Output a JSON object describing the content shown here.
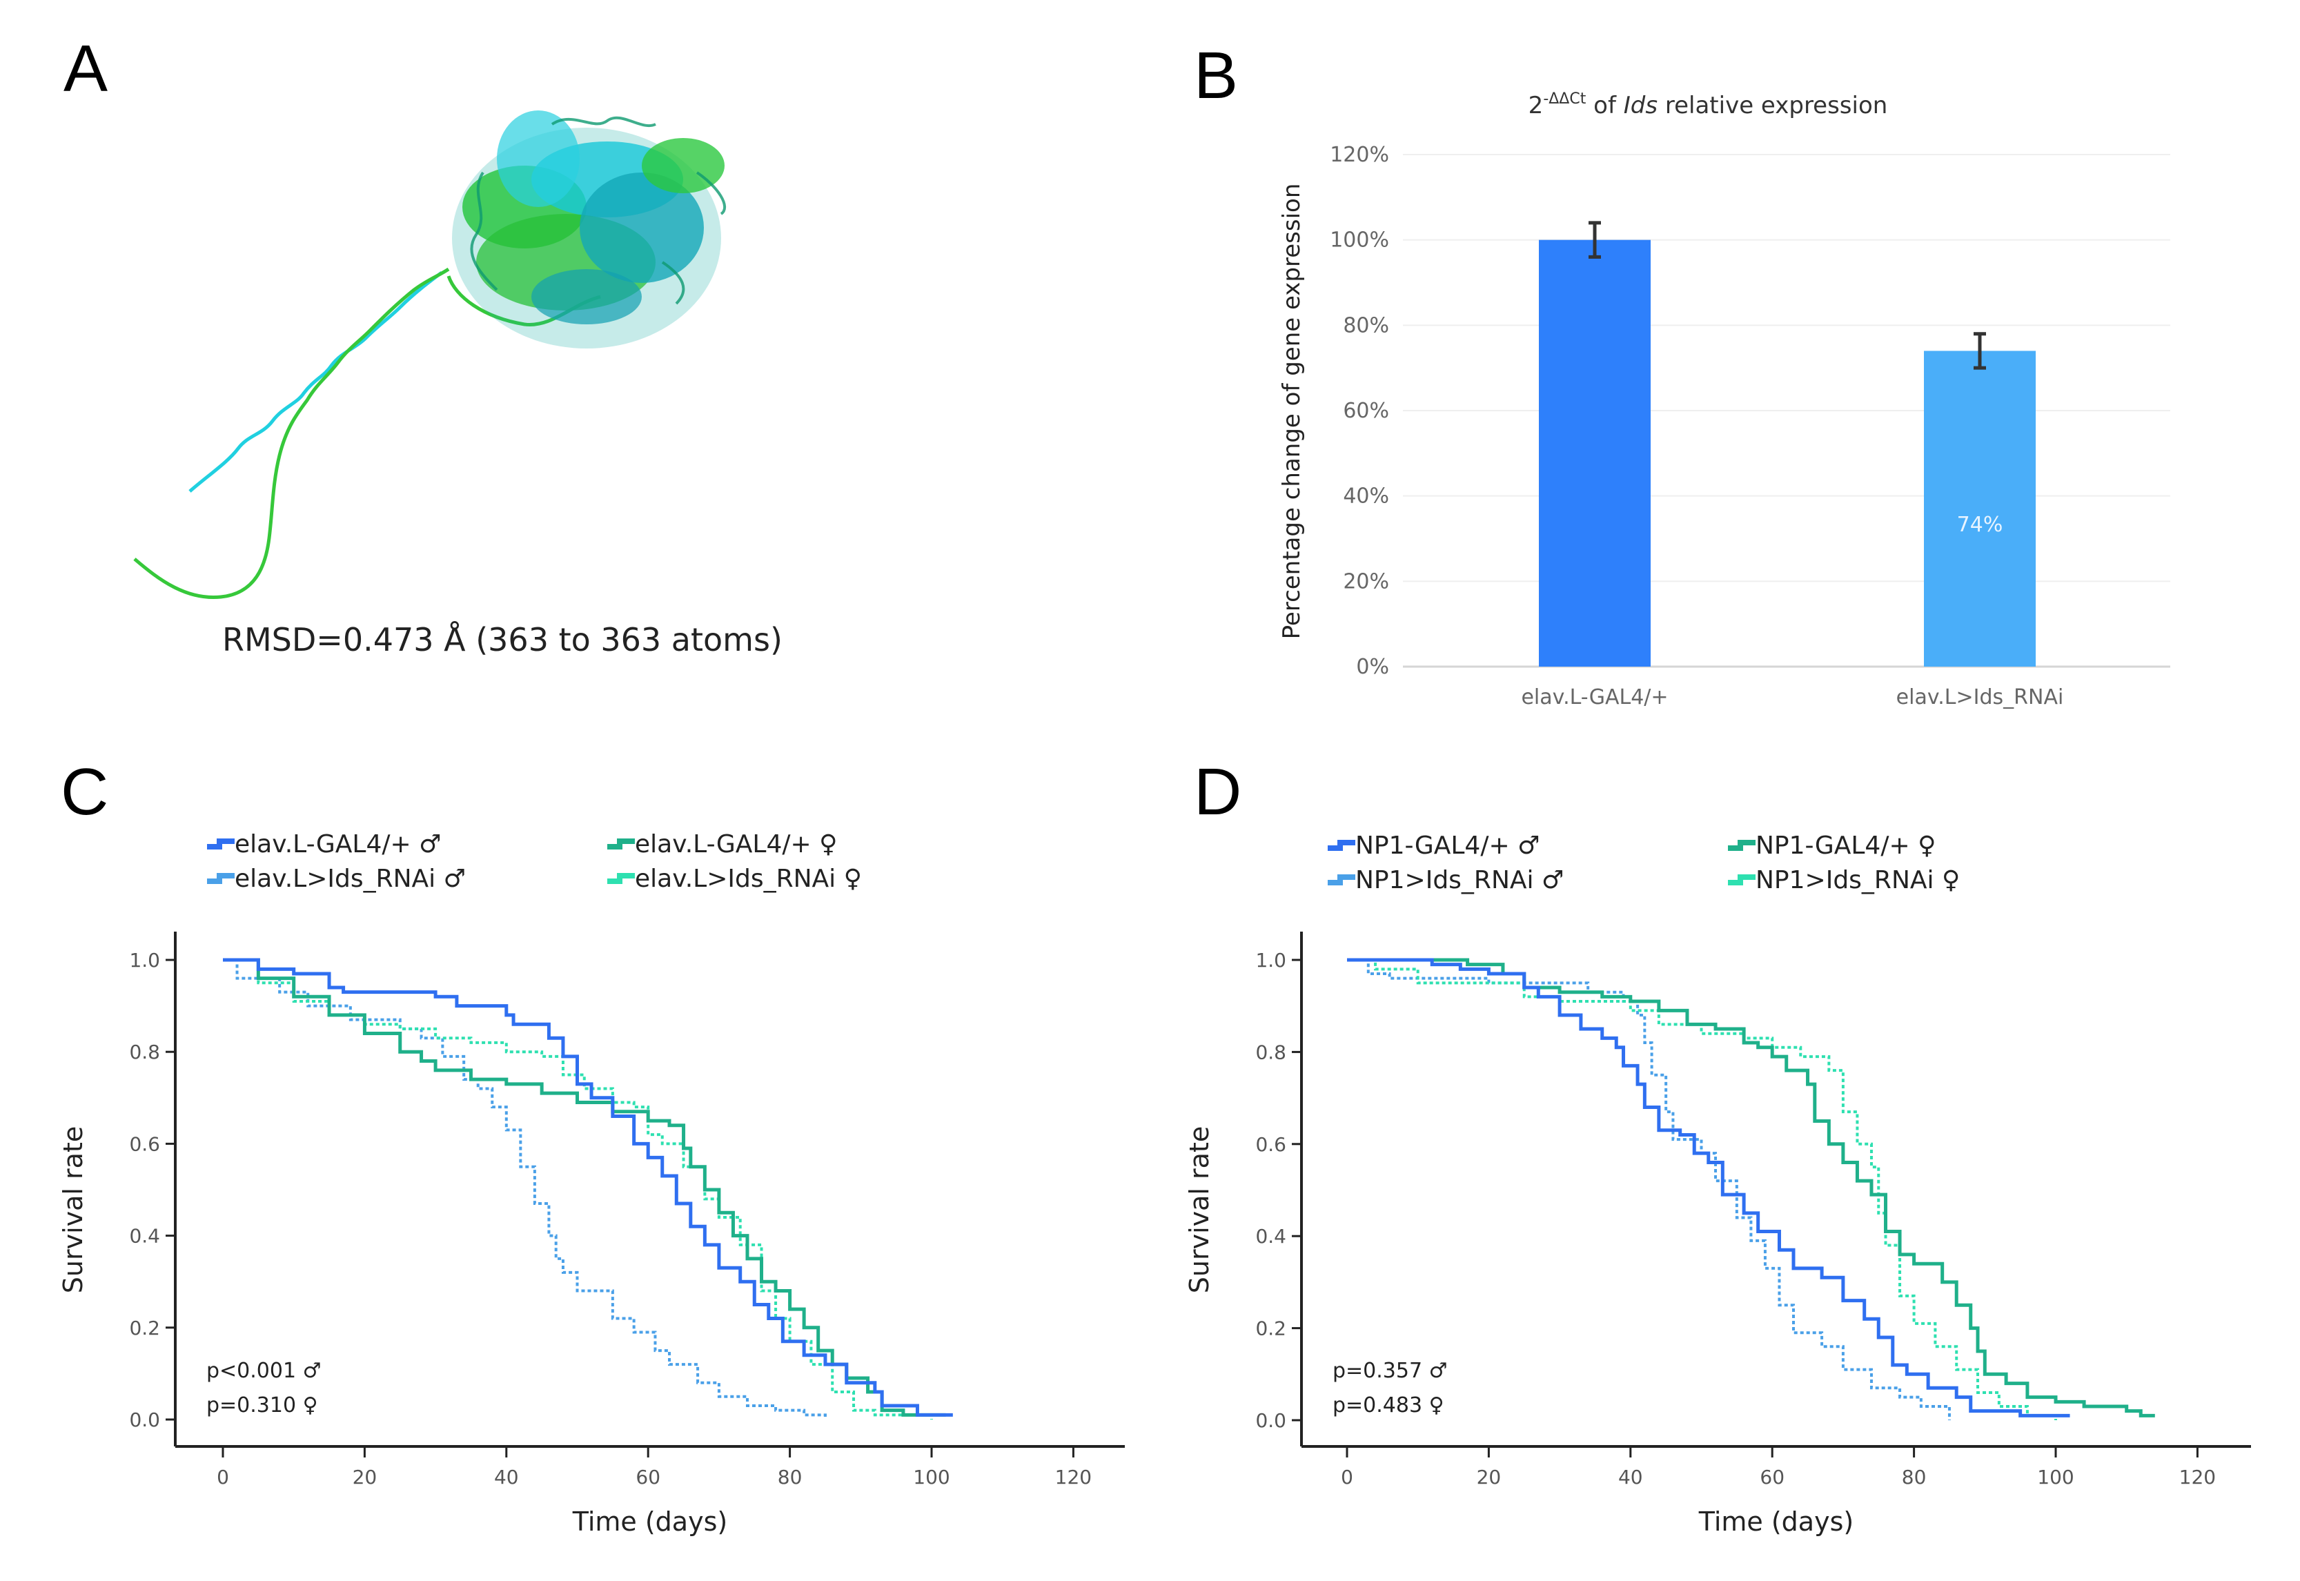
{
  "figure": {
    "panels": [
      "A",
      "B",
      "C",
      "D"
    ]
  },
  "panel_a": {
    "letter": "A",
    "caption": "RMSD=0.473 Å (363 to 363 atoms)",
    "structure_colors": [
      "#22c832",
      "#20d0e0"
    ]
  },
  "chart_data": [
    {
      "panel": "B",
      "type": "bar",
      "title_prefix": "2",
      "title_superscript": "-ΔΔCt",
      "title_middle": " of ",
      "title_italic": "Ids",
      "title_suffix": " relative expression",
      "ylabel": "Percentage change of gene expression",
      "xlabel": "",
      "ylim": [
        0,
        120
      ],
      "yticks": [
        "0%",
        "20%",
        "40%",
        "60%",
        "80%",
        "100%",
        "120%"
      ],
      "ytick_values": [
        0,
        20,
        40,
        60,
        80,
        100,
        120
      ],
      "grid": true,
      "categories": [
        "elav.L-GAL4/+",
        "elav.L>Ids_RNAi"
      ],
      "values": [
        100,
        74
      ],
      "error_low": [
        96,
        70
      ],
      "error_high": [
        104,
        78
      ],
      "bar_colors": [
        "#2e80fb",
        "#4aaef9"
      ],
      "data_labels": [
        "",
        "74%"
      ]
    },
    {
      "panel": "C",
      "type": "line",
      "xlabel": "Time (days)",
      "ylabel": "Survival rate",
      "xlim": [
        -6,
        126
      ],
      "ylim": [
        -0.05,
        1.05
      ],
      "xticks": [
        0,
        20,
        40,
        60,
        80,
        100,
        120
      ],
      "yticks": [
        "0.0",
        "0.2",
        "0.4",
        "0.6",
        "0.8",
        "1.0"
      ],
      "ytick_values": [
        0,
        0.2,
        0.4,
        0.6,
        0.8,
        1.0
      ],
      "grid": false,
      "legend_placement": "top",
      "annotations": [
        "p<0.001 ♂",
        "p=0.310 ♀"
      ],
      "series": [
        {
          "name": "elav.L-GAL4/+ ♂",
          "color": "#2f6ff0",
          "style": "solid",
          "x": [
            0,
            5,
            10,
            13,
            15,
            17,
            25,
            30,
            33,
            38,
            40,
            41,
            44,
            46,
            48,
            50,
            52,
            55,
            58,
            60,
            62,
            64,
            66,
            68,
            70,
            73,
            75,
            77,
            79,
            82,
            85,
            88,
            92,
            93,
            98,
            103
          ],
          "y": [
            1,
            0.98,
            0.97,
            0.97,
            0.94,
            0.93,
            0.93,
            0.92,
            0.9,
            0.9,
            0.88,
            0.86,
            0.86,
            0.83,
            0.79,
            0.73,
            0.7,
            0.66,
            0.6,
            0.57,
            0.53,
            0.47,
            0.42,
            0.38,
            0.33,
            0.3,
            0.25,
            0.22,
            0.17,
            0.14,
            0.12,
            0.08,
            0.06,
            0.03,
            0.01,
            0.01
          ]
        },
        {
          "name": "elav.L>Ids_RNAi ♂",
          "color": "#4aa0e8",
          "style": "dashed",
          "x": [
            0,
            2,
            8,
            12,
            18,
            25,
            28,
            31,
            34,
            36,
            38,
            40,
            42,
            44,
            46,
            47,
            48,
            50,
            55,
            58,
            61,
            63,
            67,
            70,
            74,
            78,
            82,
            85
          ],
          "y": [
            1,
            0.96,
            0.93,
            0.9,
            0.87,
            0.85,
            0.83,
            0.79,
            0.74,
            0.72,
            0.68,
            0.63,
            0.55,
            0.47,
            0.4,
            0.35,
            0.32,
            0.28,
            0.22,
            0.19,
            0.15,
            0.12,
            0.08,
            0.05,
            0.03,
            0.02,
            0.01,
            0.0
          ]
        },
        {
          "name": "elav.L-GAL4/+ ♀",
          "color": "#1fb08a",
          "style": "solid",
          "x": [
            0,
            5,
            10,
            15,
            20,
            25,
            28,
            30,
            35,
            40,
            45,
            50,
            55,
            60,
            63,
            65,
            66,
            68,
            70,
            72,
            74,
            76,
            78,
            80,
            82,
            84,
            86,
            88,
            91,
            93,
            96,
            102
          ],
          "y": [
            1,
            0.96,
            0.92,
            0.88,
            0.84,
            0.8,
            0.78,
            0.76,
            0.74,
            0.73,
            0.71,
            0.69,
            0.67,
            0.65,
            0.64,
            0.59,
            0.55,
            0.5,
            0.45,
            0.4,
            0.35,
            0.3,
            0.28,
            0.24,
            0.2,
            0.15,
            0.12,
            0.09,
            0.06,
            0.02,
            0.01,
            0.01
          ]
        },
        {
          "name": "elav.L>Ids_RNAi ♀",
          "color": "#2ee0b0",
          "style": "dashed",
          "x": [
            0,
            5,
            10,
            15,
            20,
            25,
            30,
            35,
            40,
            45,
            48,
            51,
            55,
            58,
            60,
            62,
            65,
            68,
            70,
            73,
            76,
            78,
            80,
            83,
            86,
            89,
            92,
            100
          ],
          "y": [
            1,
            0.95,
            0.91,
            0.88,
            0.86,
            0.85,
            0.83,
            0.82,
            0.8,
            0.79,
            0.75,
            0.72,
            0.69,
            0.68,
            0.62,
            0.6,
            0.55,
            0.48,
            0.44,
            0.38,
            0.28,
            0.22,
            0.17,
            0.12,
            0.06,
            0.02,
            0.01,
            0.0
          ]
        }
      ]
    },
    {
      "panel": "D",
      "type": "line",
      "xlabel": "Time (days)",
      "ylabel": "Survival rate",
      "xlim": [
        -6,
        126
      ],
      "ylim": [
        -0.05,
        1.05
      ],
      "xticks": [
        0,
        20,
        40,
        60,
        80,
        100,
        120
      ],
      "yticks": [
        "0.0",
        "0.2",
        "0.4",
        "0.6",
        "0.8",
        "1.0"
      ],
      "ytick_values": [
        0,
        0.2,
        0.4,
        0.6,
        0.8,
        1.0
      ],
      "grid": false,
      "legend_placement": "top",
      "annotations": [
        "p=0.357 ♂",
        "p=0.483 ♀"
      ],
      "series": [
        {
          "name": "NP1-GAL4/+ ♂",
          "color": "#2f6ff0",
          "style": "solid",
          "x": [
            0,
            12,
            16,
            20,
            25,
            27,
            30,
            33,
            36,
            38,
            39,
            41,
            42,
            44,
            47,
            49,
            51,
            53,
            56,
            58,
            61,
            63,
            67,
            70,
            73,
            75,
            77,
            79,
            82,
            86,
            88,
            95,
            102
          ],
          "y": [
            1,
            0.99,
            0.98,
            0.97,
            0.94,
            0.92,
            0.88,
            0.85,
            0.83,
            0.81,
            0.77,
            0.73,
            0.68,
            0.63,
            0.62,
            0.58,
            0.56,
            0.49,
            0.45,
            0.41,
            0.37,
            0.33,
            0.31,
            0.26,
            0.22,
            0.18,
            0.12,
            0.1,
            0.07,
            0.05,
            0.02,
            0.01,
            0.01
          ]
        },
        {
          "name": "NP1>Ids_RNAi ♂",
          "color": "#4aa0e8",
          "style": "dashed",
          "x": [
            0,
            3,
            6,
            20,
            25,
            31,
            34,
            39,
            41,
            42,
            43,
            45,
            46,
            50,
            52,
            55,
            57,
            59,
            61,
            63,
            67,
            70,
            74,
            78,
            81,
            85
          ],
          "y": [
            1,
            0.97,
            0.96,
            0.95,
            0.95,
            0.95,
            0.93,
            0.91,
            0.88,
            0.82,
            0.75,
            0.67,
            0.61,
            0.58,
            0.52,
            0.44,
            0.39,
            0.33,
            0.25,
            0.19,
            0.16,
            0.11,
            0.07,
            0.05,
            0.03,
            0.0
          ]
        },
        {
          "name": "NP1-GAL4/+ ♀",
          "color": "#1fb08a",
          "style": "solid",
          "x": [
            0,
            17,
            22,
            25,
            30,
            36,
            40,
            44,
            48,
            52,
            56,
            58,
            60,
            62,
            65,
            66,
            68,
            70,
            72,
            74,
            76,
            78,
            80,
            84,
            86,
            88,
            89,
            90,
            93,
            96,
            100,
            104,
            110,
            112,
            114
          ],
          "y": [
            1,
            0.99,
            0.97,
            0.94,
            0.93,
            0.92,
            0.91,
            0.89,
            0.86,
            0.85,
            0.82,
            0.81,
            0.79,
            0.76,
            0.73,
            0.65,
            0.6,
            0.56,
            0.52,
            0.49,
            0.41,
            0.36,
            0.34,
            0.3,
            0.25,
            0.2,
            0.15,
            0.1,
            0.08,
            0.05,
            0.04,
            0.03,
            0.02,
            0.01,
            0.01
          ]
        },
        {
          "name": "NP1>Ids_RNAi ♀",
          "color": "#2ee0b0",
          "style": "dashed",
          "x": [
            0,
            4,
            10,
            25,
            30,
            40,
            44,
            50,
            56,
            60,
            64,
            68,
            70,
            72,
            74,
            75,
            76,
            78,
            80,
            83,
            86,
            89,
            92,
            96,
            100
          ],
          "y": [
            1,
            0.98,
            0.95,
            0.92,
            0.91,
            0.89,
            0.86,
            0.84,
            0.83,
            0.81,
            0.79,
            0.76,
            0.67,
            0.6,
            0.55,
            0.45,
            0.38,
            0.27,
            0.21,
            0.16,
            0.11,
            0.06,
            0.03,
            0.01,
            0.0
          ]
        }
      ]
    }
  ]
}
